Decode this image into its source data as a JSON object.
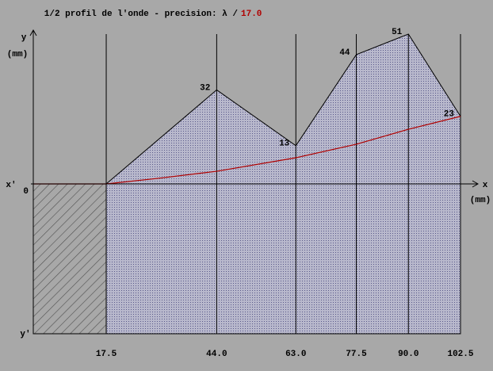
{
  "chart_data": {
    "type": "area",
    "title": "1/2 profil de l'onde  -  precision: λ /",
    "title_value": "17.0",
    "y_label": "y",
    "y_unit": "(mm)",
    "x_label": "x",
    "x_unit": "(mm)",
    "x_neg_label": "x'",
    "y_neg_label": "y'",
    "x": [
      17.5,
      44,
      63,
      77.5,
      90,
      102.5
    ],
    "xlim": [
      0,
      102.5
    ],
    "ylim": [
      -51,
      51
    ],
    "xticks": [
      17.5,
      {
        "value": 44,
        "label": "44.0"
      },
      {
        "value": 63,
        "label": "63.0"
      },
      77.5,
      {
        "value": 90,
        "label": "90.0"
      },
      102.5
    ],
    "yticks": [
      0
    ],
    "series": [
      {
        "color": "#b4b4cc",
        "values": [
          0,
          32,
          13,
          44,
          51,
          23
        ],
        "value_labels": [
          null,
          "32",
          "13",
          "44",
          "51",
          "23"
        ]
      }
    ],
    "curve": {
      "color": "#b00000",
      "x": [
        0,
        17.5,
        30,
        44,
        63,
        77.5,
        90,
        102.5
      ],
      "values": [
        0,
        0,
        1.9,
        4.3,
        8.9,
        13.5,
        18.6,
        23
      ]
    }
  }
}
